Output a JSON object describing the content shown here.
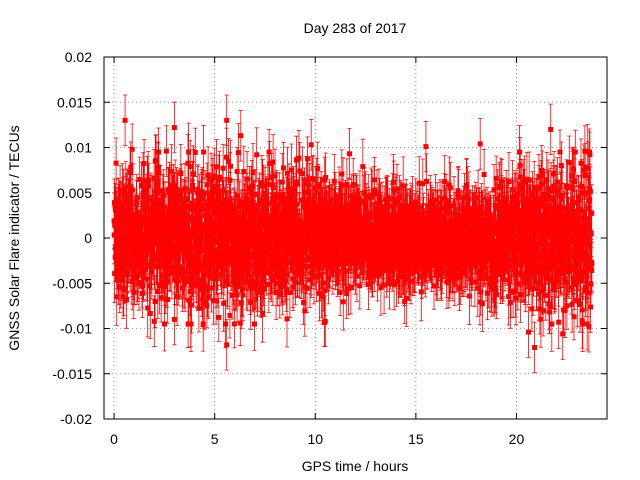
{
  "chart_data": {
    "type": "scatter",
    "title": "Day 283 of 2017",
    "xlabel": "GPS time / hours",
    "ylabel": "GNSS Solar Flare indicator / TECUs",
    "xlim": [
      -0.5,
      24.5
    ],
    "ylim": [
      -0.02,
      0.02
    ],
    "x_ticks": [
      "0",
      "5",
      "10",
      "15",
      "20"
    ],
    "x_tick_values": [
      0,
      5,
      10,
      15,
      20
    ],
    "y_ticks": [
      "-0.02",
      "-0.015",
      "-0.01",
      "-0.005",
      "0",
      "0.005",
      "0.01",
      "0.015",
      "0.02"
    ],
    "y_tick_values": [
      -0.02,
      -0.015,
      -0.01,
      -0.005,
      0,
      0.005,
      0.01,
      0.015,
      0.02
    ],
    "grid": true,
    "legend": "none",
    "series_color": "#ff0000",
    "x_range": [
      0,
      23.75
    ],
    "x_step_hours": 0.00833,
    "error_bar_typical": 0.0028,
    "noise_sigma": [
      [
        0,
        0.0035
      ],
      [
        2,
        0.0035
      ],
      [
        4,
        0.004
      ],
      [
        6,
        0.0038
      ],
      [
        8,
        0.0033
      ],
      [
        10,
        0.003
      ],
      [
        12,
        0.0028
      ],
      [
        14,
        0.0025
      ],
      [
        16,
        0.0024
      ],
      [
        18,
        0.0027
      ],
      [
        20,
        0.0032
      ],
      [
        22,
        0.004
      ],
      [
        23.75,
        0.0042
      ]
    ],
    "outliers": [
      {
        "x": 0.55,
        "y": 0.013
      },
      {
        "x": 5.6,
        "y": 0.013
      },
      {
        "x": 3.0,
        "y": 0.0122
      },
      {
        "x": 6.3,
        "y": 0.0113
      },
      {
        "x": 2.6,
        "y": 0.0096
      },
      {
        "x": 15.5,
        "y": 0.0101
      },
      {
        "x": 18.2,
        "y": 0.0104
      },
      {
        "x": 21.7,
        "y": 0.012
      },
      {
        "x": 5.6,
        "y": -0.0118
      },
      {
        "x": 20.9,
        "y": -0.0121
      },
      {
        "x": 20.6,
        "y": -0.0104
      },
      {
        "x": 2.0,
        "y": -0.0092
      },
      {
        "x": 3.0,
        "y": -0.009
      },
      {
        "x": 10.5,
        "y": -0.0092
      },
      {
        "x": 22.3,
        "y": -0.0106
      },
      {
        "x": 0.9,
        "y": 0.0098
      },
      {
        "x": 9.8,
        "y": 0.0103
      },
      {
        "x": 11.7,
        "y": 0.0093
      },
      {
        "x": 23.4,
        "y": 0.0096
      },
      {
        "x": 23.6,
        "y": -0.0098
      }
    ]
  }
}
